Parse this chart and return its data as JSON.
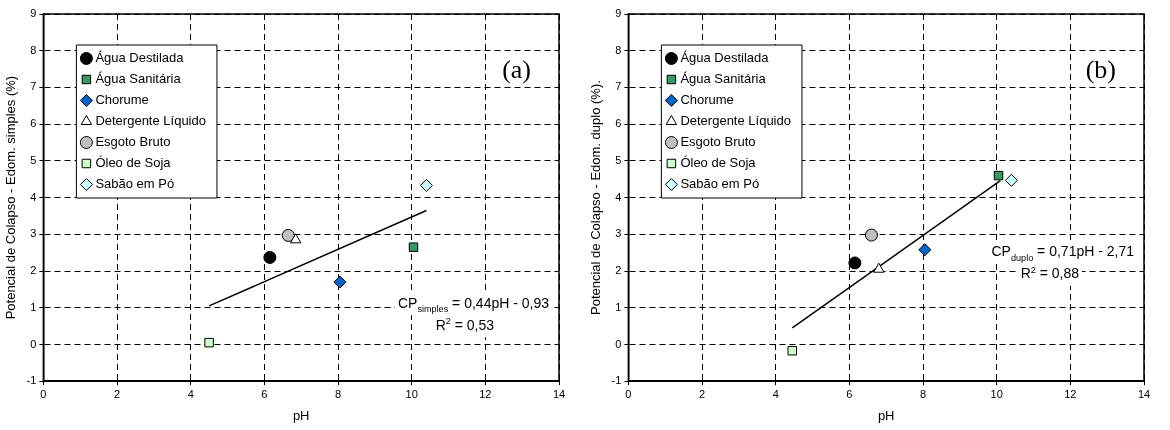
{
  "chart_data": [
    {
      "type": "scatter",
      "xlabel": "pH",
      "ylabel": "Potencial de Colapso - Edom. simples (%)",
      "xlim": [
        0,
        14
      ],
      "xticks": [
        0,
        2,
        4,
        6,
        8,
        10,
        12,
        14
      ],
      "ylim": [
        -1,
        9
      ],
      "yticks": [
        -1,
        0,
        1,
        2,
        3,
        4,
        5,
        6,
        7,
        8,
        9
      ],
      "grid": true,
      "legend": "top left",
      "annotations": [
        "(a)",
        "CP$_{simples}$ = 0,44pH - 0,93",
        "R$^{2}$ = 0,53"
      ],
      "series": [
        {
          "name": "Água Destilada",
          "color": "#000000",
          "marker": "circle",
          "x": [
            6.15
          ],
          "values": [
            2.37
          ]
        },
        {
          "name": "Água Sanitária",
          "color": "#339966",
          "marker": "square",
          "x": [
            10.05
          ],
          "values": [
            2.65
          ]
        },
        {
          "name": "Chorume",
          "color": "#0066cc",
          "marker": "diamond",
          "x": [
            8.05
          ],
          "values": [
            1.7
          ]
        },
        {
          "name": "Detergente Líquido",
          "color": "#ffffff",
          "marker": "triangle",
          "x": [
            6.85
          ],
          "values": [
            2.85
          ]
        },
        {
          "name": "Esgoto Bruto",
          "color": "#c0c0c0",
          "marker": "circle",
          "x": [
            6.65
          ],
          "values": [
            2.97
          ]
        },
        {
          "name": "Óleo de Soja",
          "color": "#ccffcc",
          "marker": "square",
          "x": [
            4.5
          ],
          "values": [
            0.05
          ]
        },
        {
          "name": "Sabão em Pó",
          "color": "#ccffff",
          "marker": "diamond",
          "x": [
            10.4
          ],
          "values": [
            4.33
          ]
        },
        {
          "type": "line",
          "color": "#000000",
          "marker": "none",
          "x": [
            4.5,
            10.4
          ],
          "values": [
            1.05,
            3.65
          ]
        }
      ]
    },
    {
      "type": "scatter",
      "xlabel": "pH",
      "ylabel": "Potencial de Colapso - Edom. duplo (%).",
      "xlim": [
        0,
        14
      ],
      "xticks": [
        0,
        2,
        4,
        6,
        8,
        10,
        12,
        14
      ],
      "ylim": [
        -1,
        9
      ],
      "yticks": [
        -1,
        0,
        1,
        2,
        3,
        4,
        5,
        6,
        7,
        8,
        9
      ],
      "grid": true,
      "legend": "top left",
      "annotations": [
        "(b)",
        "CP$_{duplo}$ = 0,71pH - 2,71",
        "R$^{2}$ = 0,88"
      ],
      "series": [
        {
          "name": "Água Destilada",
          "color": "#000000",
          "marker": "circle",
          "x": [
            6.15
          ],
          "values": [
            2.22
          ]
        },
        {
          "name": "Água Sanitária",
          "color": "#339966",
          "marker": "square",
          "x": [
            10.05
          ],
          "values": [
            4.6
          ]
        },
        {
          "name": "Chorume",
          "color": "#0066cc",
          "marker": "diamond",
          "x": [
            8.05
          ],
          "values": [
            2.58
          ]
        },
        {
          "name": "Detergente Líquido",
          "color": "#ffffff",
          "marker": "triangle",
          "x": [
            6.8
          ],
          "values": [
            2.05
          ]
        },
        {
          "name": "Esgoto Bruto",
          "color": "#c0c0c0",
          "marker": "circle",
          "x": [
            6.6
          ],
          "values": [
            2.98
          ]
        },
        {
          "name": "Óleo de Soja",
          "color": "#ccffcc",
          "marker": "square",
          "x": [
            4.45
          ],
          "values": [
            -0.17
          ]
        },
        {
          "name": "Sabão em Pó",
          "color": "#ccffff",
          "marker": "diamond",
          "x": [
            10.4
          ],
          "values": [
            4.47
          ]
        },
        {
          "type": "line",
          "color": "#000000",
          "marker": "none",
          "x": [
            4.45,
            10.1
          ],
          "values": [
            0.45,
            4.46
          ]
        }
      ]
    }
  ]
}
